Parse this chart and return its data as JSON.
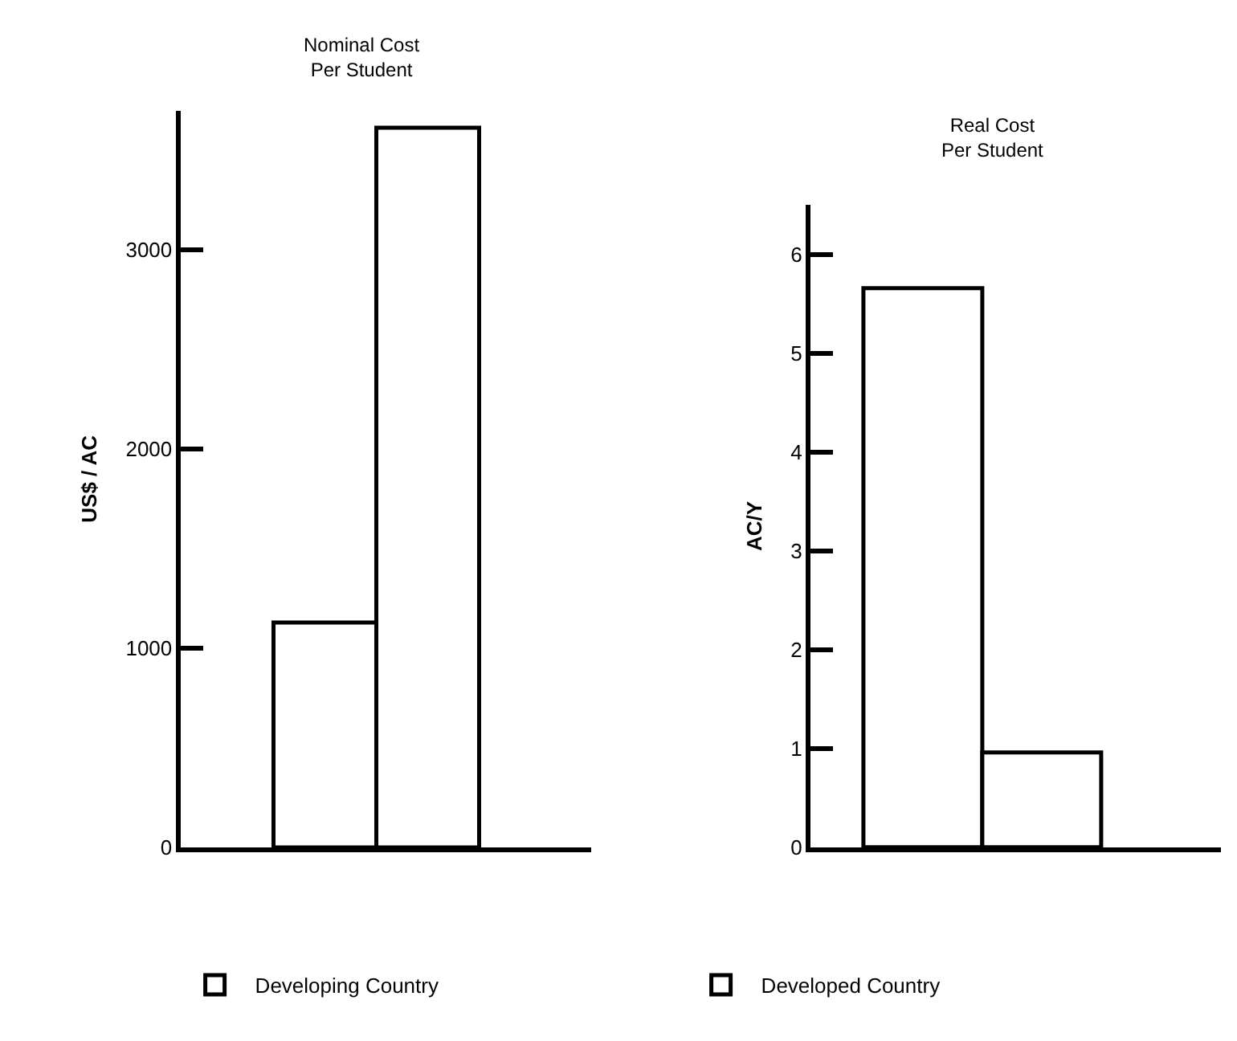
{
  "chart_data": [
    {
      "type": "bar",
      "title": "Nominal Cost\nPer Student",
      "ylabel": "US$ / AC",
      "categories": [
        null
      ],
      "ylim": [
        0,
        3700
      ],
      "yticks": [
        0,
        1000,
        2000,
        3000
      ],
      "tick_labels": "y",
      "legend": "bottom",
      "series": [
        {
          "name": "Developing Country",
          "color": "#ffffff",
          "values": [
            1130
          ]
        },
        {
          "name": "Developed Country",
          "color": "#ffffff",
          "values": [
            3610
          ]
        }
      ]
    },
    {
      "type": "bar",
      "title": "Real Cost\nPer Student",
      "ylabel": "AC/Y",
      "categories": [
        null
      ],
      "ylim": [
        0,
        6.5
      ],
      "yticks": [
        0,
        1,
        2,
        3,
        4,
        5,
        6
      ],
      "tick_labels": "y",
      "legend": "bottom",
      "series": [
        {
          "color": "#ffffff",
          "values": [
            5.65
          ]
        },
        {
          "color": "#ffffff",
          "values": [
            0.95
          ]
        }
      ]
    }
  ]
}
